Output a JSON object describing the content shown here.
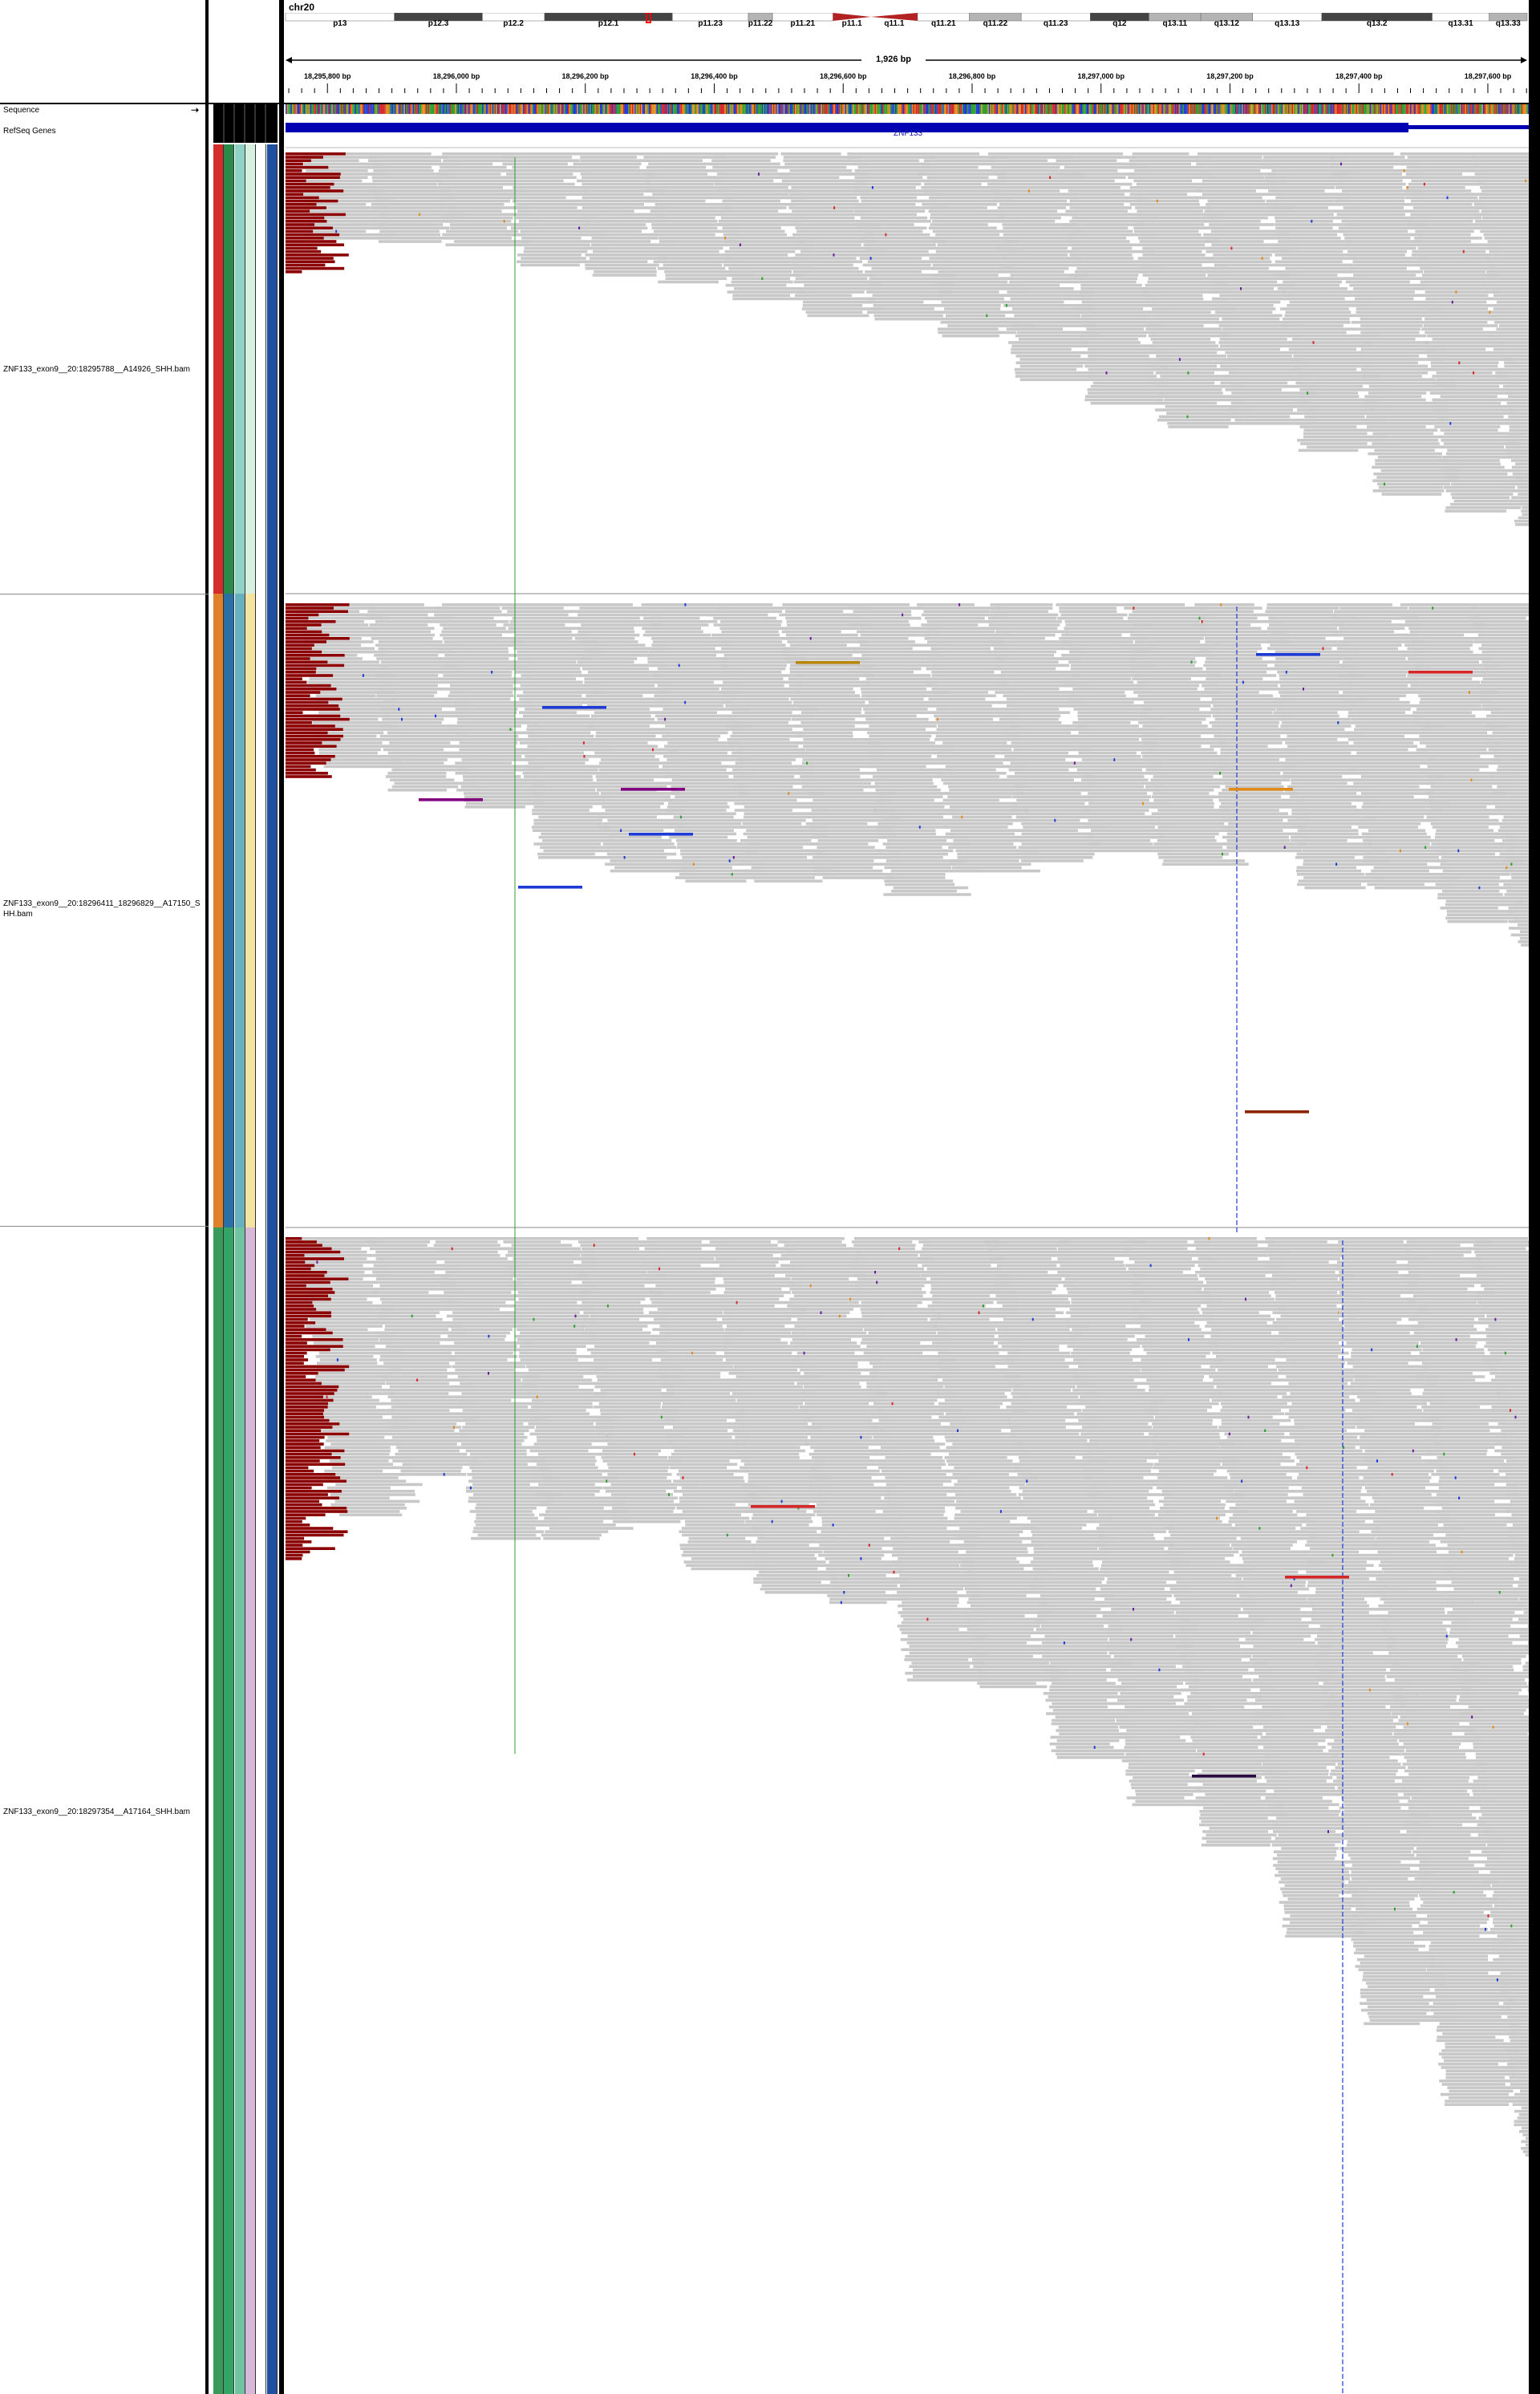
{
  "header": {
    "chromosome": "chr20",
    "span_label": "1,926 bp"
  },
  "ideogram": {
    "bands": [
      {
        "label": "p13",
        "stain": "white"
      },
      {
        "label": "p12.3",
        "stain": "dark"
      },
      {
        "label": "p12.2",
        "stain": "white"
      },
      {
        "label": "p12.1",
        "stain": "dark"
      },
      {
        "label": "p11.23",
        "stain": "white"
      },
      {
        "label": "p11.22",
        "stain": "light"
      },
      {
        "label": "p11.21",
        "stain": "white"
      },
      {
        "label": "p11.1",
        "stain": "centromere"
      },
      {
        "label": "q11.1",
        "stain": "centromere"
      },
      {
        "label": "q11.21",
        "stain": "white"
      },
      {
        "label": "q11.22",
        "stain": "light"
      },
      {
        "label": "q11.23",
        "stain": "white"
      },
      {
        "label": "q12",
        "stain": "dark"
      },
      {
        "label": "q13.11",
        "stain": "light"
      },
      {
        "label": "q13.12",
        "stain": "light"
      },
      {
        "label": "q13.13",
        "stain": "white"
      },
      {
        "label": "q13.2",
        "stain": "dark"
      },
      {
        "label": "q13.31",
        "stain": "white"
      },
      {
        "label": "q13.33",
        "stain": "light"
      }
    ]
  },
  "ruler": {
    "ticks": [
      {
        "bp": 18295800,
        "label": "18,295,800 bp"
      },
      {
        "bp": 18296000,
        "label": "18,296,000 bp"
      },
      {
        "bp": 18296200,
        "label": "18,296,200 bp"
      },
      {
        "bp": 18296400,
        "label": "18,296,400 bp"
      },
      {
        "bp": 18296600,
        "label": "18,296,600 bp"
      },
      {
        "bp": 18296800,
        "label": "18,296,800 bp"
      },
      {
        "bp": 18297000,
        "label": "18,297,000 bp"
      },
      {
        "bp": 18297200,
        "label": "18,297,200 bp"
      },
      {
        "bp": 18297400,
        "label": "18,297,400 bp"
      },
      {
        "bp": 18297600,
        "label": "18,297,600 bp"
      }
    ]
  },
  "feature_tracks": {
    "sequence_label": "Sequence",
    "refseq_label": "RefSeq Genes",
    "gene_name": "ZNF133"
  },
  "alignment_tracks": [
    {
      "name": "ZNF133_exon9__20:18295788__A14926_SHH.bam",
      "attr_colors": [
        "#d62b2b",
        "#2b8a4a",
        "#8fd3c7",
        "#d7f0e0",
        "#ffffff",
        "#1f4fa0"
      ]
    },
    {
      "name": "ZNF133_exon9__20:18296411_18296829__A17150_SHH.bam",
      "attr_colors": [
        "#e0802a",
        "#2a6fa6",
        "#66b0c0",
        "#f5e3a0",
        "#ffffff",
        "#1f4fa0"
      ]
    },
    {
      "name": "ZNF133_exon9__20:18297354__A17164_SHH.bam",
      "attr_colors": [
        "#3a9a5a",
        "#33a366",
        "#6fc3a0",
        "#d8b8d8",
        "#ffffff",
        "#1f4fa0"
      ]
    }
  ],
  "colors": {
    "read_fill": "#c8c8c8",
    "softclip": "#8b0000",
    "gene_blue": "#0000b3",
    "border": "#000000"
  }
}
